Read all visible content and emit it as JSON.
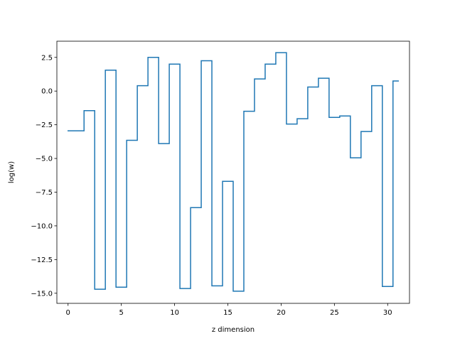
{
  "chart_data": {
    "type": "line",
    "drawstyle": "steps-mid",
    "title": "",
    "xlabel": "z dimension",
    "ylabel": "log(w)",
    "xlim": [
      -1.05,
      32.05
    ],
    "ylim": [
      -15.75,
      3.7
    ],
    "xticks": [
      0,
      5,
      10,
      15,
      20,
      25,
      30
    ],
    "xtick_labels": [
      "0",
      "5",
      "10",
      "15",
      "20",
      "25",
      "30"
    ],
    "yticks": [
      2.5,
      0.0,
      -2.5,
      -5.0,
      -7.5,
      -10.0,
      -12.5,
      -15.0
    ],
    "ytick_labels": [
      "2.5",
      "0.0",
      "−2.5",
      "−5.0",
      "−7.5",
      "−10.0",
      "−12.5",
      "−15.0"
    ],
    "grid": false,
    "series": [
      {
        "color": "#1f77b4",
        "x": [
          0,
          1,
          2,
          3,
          4,
          5,
          6,
          7,
          8,
          9,
          10,
          11,
          12,
          13,
          14,
          15,
          16,
          17,
          18,
          19,
          20,
          21,
          22,
          23,
          24,
          25,
          26,
          27,
          28,
          29,
          30,
          31
        ],
        "values": [
          -2.95,
          -2.95,
          -1.45,
          -14.7,
          1.55,
          -14.55,
          -3.65,
          0.4,
          2.5,
          -3.9,
          2.0,
          -14.65,
          -8.65,
          2.25,
          -14.45,
          -6.7,
          -14.85,
          -1.5,
          0.9,
          2.0,
          2.85,
          -2.45,
          -2.05,
          0.3,
          0.95,
          -1.95,
          -1.85,
          -4.95,
          -3.0,
          0.4,
          -14.5,
          0.75
        ]
      }
    ]
  }
}
